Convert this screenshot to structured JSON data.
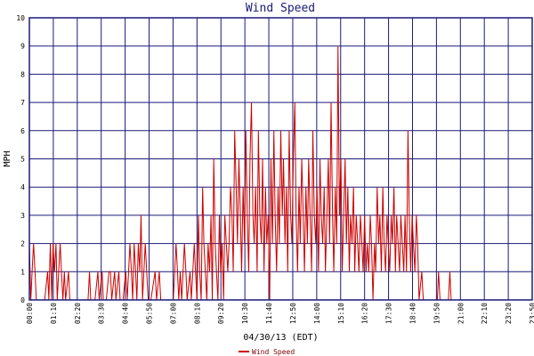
{
  "chart_data": {
    "type": "line",
    "title": "Wind Speed",
    "xlabel": "04/30/13 (EDT)",
    "ylabel": "MPH",
    "ylim": [
      0,
      10
    ],
    "y_ticks": [
      "0",
      "1",
      "2",
      "3",
      "4",
      "5",
      "6",
      "7",
      "8",
      "9",
      "10"
    ],
    "x_ticks": [
      "00:00",
      "01:10",
      "02:20",
      "03:30",
      "04:40",
      "05:50",
      "07:00",
      "08:10",
      "09:20",
      "10:30",
      "11:40",
      "12:50",
      "14:00",
      "15:10",
      "16:20",
      "17:30",
      "18:40",
      "19:50",
      "21:00",
      "22:10",
      "23:20",
      "23:50"
    ],
    "xlim_hours": [
      0,
      24
    ],
    "grid": true,
    "legend_position": "bottom-center",
    "colors": {
      "series": "#cc0000",
      "grid": "#1a1a7a",
      "title": "#1a1a7a"
    },
    "series": [
      {
        "name": "Wind Speed",
        "points": [
          [
            0.0,
            2
          ],
          [
            0.07,
            0
          ],
          [
            0.13,
            1
          ],
          [
            0.2,
            2
          ],
          [
            0.27,
            1
          ],
          [
            0.33,
            0
          ],
          [
            0.47,
            0
          ],
          [
            0.6,
            0
          ],
          [
            0.73,
            0
          ],
          [
            0.87,
            1
          ],
          [
            0.93,
            0
          ],
          [
            1.0,
            2
          ],
          [
            1.07,
            0
          ],
          [
            1.13,
            2
          ],
          [
            1.2,
            1
          ],
          [
            1.27,
            2
          ],
          [
            1.33,
            0
          ],
          [
            1.47,
            2
          ],
          [
            1.53,
            1
          ],
          [
            1.6,
            0
          ],
          [
            1.67,
            1
          ],
          [
            1.73,
            0
          ],
          [
            1.87,
            1
          ],
          [
            1.93,
            0
          ],
          [
            2.07,
            0
          ],
          [
            2.33,
            0
          ],
          [
            2.53,
            0
          ],
          [
            2.67,
            0
          ],
          [
            2.8,
            0
          ],
          [
            2.87,
            1
          ],
          [
            2.93,
            0
          ],
          [
            3.13,
            0
          ],
          [
            3.27,
            1
          ],
          [
            3.33,
            0
          ],
          [
            3.47,
            1
          ],
          [
            3.53,
            0
          ],
          [
            3.67,
            0
          ],
          [
            3.8,
            1
          ],
          [
            3.87,
            1
          ],
          [
            3.93,
            0
          ],
          [
            4.07,
            1
          ],
          [
            4.13,
            0
          ],
          [
            4.27,
            1
          ],
          [
            4.33,
            0
          ],
          [
            4.47,
            0
          ],
          [
            4.6,
            1
          ],
          [
            4.67,
            0
          ],
          [
            4.8,
            2
          ],
          [
            4.87,
            1
          ],
          [
            4.93,
            0
          ],
          [
            5.0,
            2
          ],
          [
            5.07,
            1
          ],
          [
            5.13,
            0
          ],
          [
            5.2,
            2
          ],
          [
            5.27,
            1
          ],
          [
            5.33,
            3
          ],
          [
            5.4,
            0
          ],
          [
            5.53,
            2
          ],
          [
            5.6,
            1
          ],
          [
            5.67,
            0
          ],
          [
            5.8,
            0
          ],
          [
            6.0,
            1
          ],
          [
            6.07,
            0
          ],
          [
            6.2,
            1
          ],
          [
            6.27,
            0
          ],
          [
            6.4,
            0
          ],
          [
            6.6,
            0
          ],
          [
            6.73,
            0
          ],
          [
            6.87,
            0
          ],
          [
            7.0,
            2
          ],
          [
            7.07,
            1
          ],
          [
            7.13,
            0
          ],
          [
            7.2,
            1
          ],
          [
            7.27,
            0
          ],
          [
            7.4,
            2
          ],
          [
            7.47,
            1
          ],
          [
            7.53,
            0
          ],
          [
            7.67,
            1
          ],
          [
            7.73,
            0
          ],
          [
            7.87,
            2
          ],
          [
            7.93,
            1
          ],
          [
            8.0,
            0
          ],
          [
            8.07,
            3
          ],
          [
            8.13,
            1
          ],
          [
            8.2,
            0
          ],
          [
            8.27,
            4
          ],
          [
            8.33,
            2
          ],
          [
            8.4,
            1
          ],
          [
            8.47,
            0
          ],
          [
            8.53,
            2
          ],
          [
            8.6,
            1
          ],
          [
            8.67,
            3
          ],
          [
            8.73,
            0
          ],
          [
            8.8,
            5
          ],
          [
            8.87,
            2
          ],
          [
            8.93,
            1
          ],
          [
            9.0,
            0
          ],
          [
            9.07,
            3
          ],
          [
            9.13,
            1
          ],
          [
            9.2,
            2
          ],
          [
            9.27,
            0
          ],
          [
            9.33,
            3
          ],
          [
            9.4,
            2
          ],
          [
            9.47,
            1
          ],
          [
            9.53,
            2
          ],
          [
            9.6,
            4
          ],
          [
            9.67,
            3
          ],
          [
            9.73,
            1
          ],
          [
            9.8,
            6
          ],
          [
            9.87,
            4
          ],
          [
            9.93,
            2
          ],
          [
            10.0,
            5
          ],
          [
            10.07,
            3
          ],
          [
            10.13,
            1
          ],
          [
            10.2,
            4
          ],
          [
            10.27,
            2
          ],
          [
            10.33,
            6
          ],
          [
            10.4,
            3
          ],
          [
            10.47,
            1
          ],
          [
            10.53,
            5
          ],
          [
            10.6,
            7
          ],
          [
            10.67,
            3
          ],
          [
            10.73,
            2
          ],
          [
            10.8,
            4
          ],
          [
            10.87,
            1
          ],
          [
            10.93,
            6
          ],
          [
            11.0,
            3
          ],
          [
            11.07,
            2
          ],
          [
            11.13,
            5
          ],
          [
            11.2,
            1
          ],
          [
            11.27,
            4
          ],
          [
            11.33,
            2
          ],
          [
            11.4,
            3
          ],
          [
            11.47,
            0
          ],
          [
            11.53,
            5
          ],
          [
            11.6,
            2
          ],
          [
            11.67,
            6
          ],
          [
            11.73,
            3
          ],
          [
            11.8,
            1
          ],
          [
            11.87,
            4
          ],
          [
            11.93,
            2
          ],
          [
            12.0,
            6
          ],
          [
            12.07,
            3
          ],
          [
            12.13,
            5
          ],
          [
            12.2,
            2
          ],
          [
            12.27,
            4
          ],
          [
            12.33,
            1
          ],
          [
            12.4,
            6
          ],
          [
            12.47,
            3
          ],
          [
            12.53,
            2
          ],
          [
            12.6,
            5
          ],
          [
            12.67,
            7
          ],
          [
            12.73,
            3
          ],
          [
            12.8,
            1
          ],
          [
            12.87,
            4
          ],
          [
            12.93,
            2
          ],
          [
            13.0,
            5
          ],
          [
            13.07,
            3
          ],
          [
            13.13,
            1
          ],
          [
            13.2,
            4
          ],
          [
            13.27,
            2
          ],
          [
            13.33,
            5
          ],
          [
            13.4,
            3
          ],
          [
            13.47,
            1
          ],
          [
            13.53,
            6
          ],
          [
            13.6,
            3
          ],
          [
            13.67,
            2
          ],
          [
            13.73,
            4
          ],
          [
            13.8,
            1
          ],
          [
            13.87,
            5
          ],
          [
            13.93,
            3
          ],
          [
            14.0,
            2
          ],
          [
            14.07,
            4
          ],
          [
            14.13,
            1
          ],
          [
            14.2,
            3
          ],
          [
            14.27,
            5
          ],
          [
            14.33,
            2
          ],
          [
            14.4,
            7
          ],
          [
            14.47,
            3
          ],
          [
            14.53,
            1
          ],
          [
            14.6,
            4
          ],
          [
            14.67,
            2
          ],
          [
            14.73,
            9
          ],
          [
            14.8,
            3
          ],
          [
            14.87,
            5
          ],
          [
            14.93,
            1
          ],
          [
            15.0,
            3
          ],
          [
            15.07,
            5
          ],
          [
            15.13,
            2
          ],
          [
            15.2,
            4
          ],
          [
            15.27,
            1
          ],
          [
            15.33,
            3
          ],
          [
            15.4,
            2
          ],
          [
            15.47,
            4
          ],
          [
            15.53,
            1
          ],
          [
            15.6,
            3
          ],
          [
            15.67,
            2
          ],
          [
            15.73,
            1
          ],
          [
            15.8,
            3
          ],
          [
            15.87,
            2
          ],
          [
            15.93,
            1
          ],
          [
            16.0,
            3
          ],
          [
            16.07,
            1
          ],
          [
            16.13,
            2
          ],
          [
            16.2,
            1
          ],
          [
            16.27,
            3
          ],
          [
            16.33,
            2
          ],
          [
            16.4,
            0
          ],
          [
            16.47,
            2
          ],
          [
            16.53,
            1
          ],
          [
            16.6,
            4
          ],
          [
            16.67,
            2
          ],
          [
            16.73,
            3
          ],
          [
            16.8,
            1
          ],
          [
            16.87,
            4
          ],
          [
            16.93,
            2
          ],
          [
            17.0,
            1
          ],
          [
            17.07,
            3
          ],
          [
            17.13,
            2
          ],
          [
            17.2,
            1
          ],
          [
            17.27,
            3
          ],
          [
            17.33,
            2
          ],
          [
            17.4,
            4
          ],
          [
            17.47,
            1
          ],
          [
            17.53,
            3
          ],
          [
            17.6,
            2
          ],
          [
            17.67,
            1
          ],
          [
            17.73,
            3
          ],
          [
            17.8,
            2
          ],
          [
            17.87,
            1
          ],
          [
            17.93,
            3
          ],
          [
            18.0,
            1
          ],
          [
            18.07,
            6
          ],
          [
            18.13,
            3
          ],
          [
            18.2,
            1
          ],
          [
            18.27,
            3
          ],
          [
            18.33,
            2
          ],
          [
            18.4,
            1
          ],
          [
            18.47,
            3
          ],
          [
            18.53,
            2
          ],
          [
            18.6,
            0
          ],
          [
            18.73,
            1
          ],
          [
            18.8,
            0
          ],
          [
            18.93,
            0
          ],
          [
            19.07,
            0
          ],
          [
            19.2,
            0
          ],
          [
            19.33,
            0
          ],
          [
            19.47,
            0
          ],
          [
            19.53,
            1
          ],
          [
            19.6,
            0
          ],
          [
            19.73,
            0
          ],
          [
            19.87,
            0
          ],
          [
            20.0,
            0
          ],
          [
            20.07,
            1
          ],
          [
            20.13,
            0
          ],
          [
            20.27,
            0
          ],
          [
            20.4,
            0
          ],
          [
            20.6,
            0
          ],
          [
            20.8,
            0
          ],
          [
            21.0,
            0
          ],
          [
            21.2,
            0
          ],
          [
            21.4,
            0
          ],
          [
            21.6,
            0
          ],
          [
            21.8,
            0
          ],
          [
            22.0,
            0
          ],
          [
            22.2,
            0
          ],
          [
            22.4,
            0
          ],
          [
            22.6,
            0
          ],
          [
            22.8,
            0
          ],
          [
            23.0,
            0
          ],
          [
            23.2,
            0
          ],
          [
            23.4,
            0
          ],
          [
            23.6,
            0
          ],
          [
            23.83,
            0
          ]
        ]
      }
    ]
  }
}
